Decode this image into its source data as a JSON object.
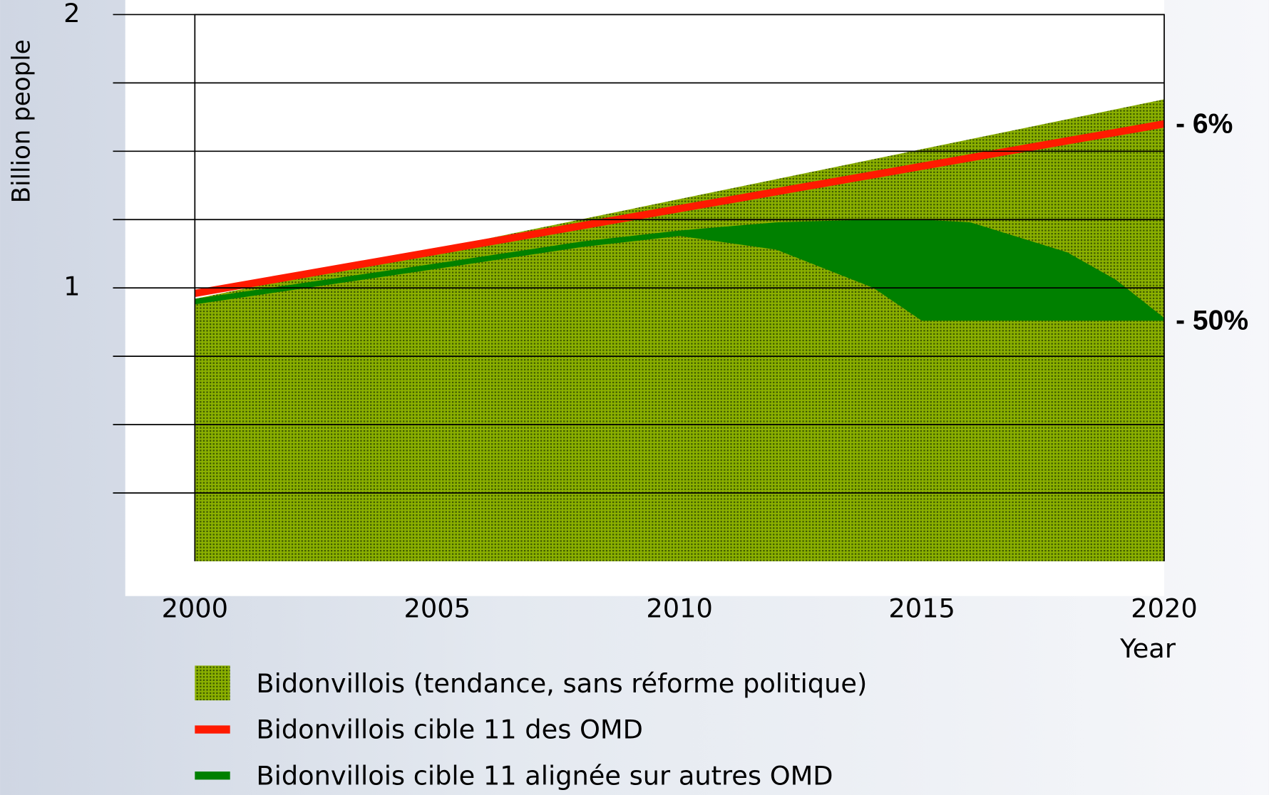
{
  "chart_data": {
    "type": "area-line",
    "ylabel": "Billion people",
    "xlabel": "Year",
    "xlim": [
      2000,
      2020
    ],
    "xticks": [
      2000,
      2005,
      2010,
      2015,
      2020
    ],
    "ylim": [
      0,
      2
    ],
    "yticks": [
      1,
      2
    ],
    "gridlines": [
      0.25,
      0.5,
      0.75,
      1,
      1.25,
      1.5,
      1.75
    ],
    "series": [
      {
        "name": "Bidonvillois (tendance, sans réforme politique)",
        "color": "#7a9c00",
        "kind": "area",
        "x": [
          2000,
          2020
        ],
        "values": [
          0.96,
          1.69
        ]
      },
      {
        "name": "Bidonvillois cible 11 des OMD",
        "color": "#ff1a00",
        "kind": "line",
        "x": [
          2000,
          2020
        ],
        "values": [
          0.98,
          1.6
        ]
      },
      {
        "name": "Bidonvillois cible 11 alignée sur autres OMD",
        "color": "#008000",
        "kind": "band",
        "x": [
          2000,
          2005,
          2008,
          2010,
          2012,
          2014,
          2015,
          2016,
          2018,
          2019,
          2020
        ],
        "values": [
          0.96,
          1.09,
          1.17,
          1.21,
          1.24,
          1.25,
          1.25,
          1.24,
          1.13,
          1.03,
          0.89
        ],
        "lower": [
          0.94,
          1.07,
          1.15,
          1.19,
          1.14,
          1.0,
          0.88,
          0.88,
          0.88,
          0.88,
          0.88
        ]
      }
    ],
    "annotations": [
      {
        "text": "- 6%",
        "x": 2020,
        "y": 1.6
      },
      {
        "text": "- 50%",
        "x": 2020,
        "y": 0.88
      }
    ]
  }
}
